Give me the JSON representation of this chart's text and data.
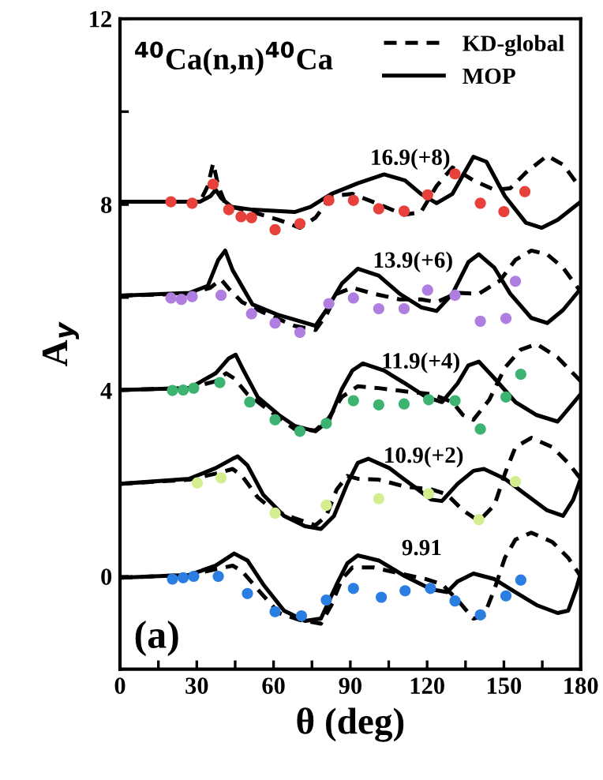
{
  "chart_data": {
    "type": "line",
    "xlabel": "θ (deg)",
    "ylabel": "A$_{y}$",
    "xlim": [
      0,
      180
    ],
    "ylim": [
      -2,
      12
    ],
    "xticks": [
      0,
      {
        "value": 15,
        "label": null
      },
      30,
      {
        "value": 45,
        "label": null
      },
      60,
      {
        "value": 75,
        "label": null
      },
      90,
      {
        "value": 105,
        "label": null
      },
      120,
      {
        "value": 135,
        "label": null
      },
      150,
      {
        "value": 165,
        "label": null
      },
      180
    ],
    "yticks": [
      0,
      {
        "value": 2,
        "label": null
      },
      4,
      {
        "value": 6,
        "label": null
      },
      8,
      {
        "value": 10,
        "label": null
      },
      12
    ],
    "grid": false,
    "legend": "top right",
    "annotations": [
      "$^{40}$Ca(n,n)$^{40}$Ca",
      "(a)",
      "16.9(+8)",
      "13.9(+6)",
      "11.9(+4)",
      "10.9(+2)",
      "9.91"
    ],
    "series": [
      {
        "name": "KD-global",
        "line_style": "dashed",
        "color": "#000000",
        "x": [
          0,
          31.2,
          34.3,
          36.4,
          38.4,
          41.5,
          51.8,
          62.1,
          70.3,
          76.4,
          82.6,
          90.8,
          101.1,
          111,
          117.6,
          123.7,
          129.9,
          138.1,
          146.3,
          152.5,
          158.6,
          166.9,
          173.1,
          180
        ],
        "values": [
          8.06,
          8.06,
          8.4,
          8.89,
          8.4,
          7.98,
          7.84,
          7.67,
          7.5,
          7.72,
          8.18,
          8.23,
          8.01,
          7.78,
          7.84,
          8.4,
          8.8,
          8.52,
          8.32,
          8.35,
          8.69,
          9.05,
          8.86,
          8.35
        ]
      },
      {
        "name": "MOP",
        "line_style": "solid",
        "color": "#000000",
        "x": [
          0,
          31.2,
          35.3,
          37.4,
          39.5,
          43.6,
          51.8,
          68.2,
          74.4,
          82.6,
          92.9,
          103.2,
          111.4,
          117.6,
          123.7,
          129.9,
          138.1,
          143.2,
          150.4,
          158.6,
          164.8,
          171,
          180
        ],
        "values": [
          8.06,
          8.06,
          8.18,
          8.32,
          8.14,
          7.95,
          7.89,
          7.84,
          7.95,
          8.23,
          8.46,
          8.65,
          8.52,
          8.23,
          8.03,
          8.23,
          9.03,
          8.92,
          8.18,
          7.61,
          7.5,
          7.67,
          8.06
        ]
      },
      {
        "type": "scatter",
        "marker": "circle",
        "color": "#e8403a",
        "x": [
          19.9,
          28.2,
          36.4,
          42.5,
          47.3,
          51.4,
          60.6,
          70.3,
          81.6,
          91.2,
          101.1,
          111,
          120.2,
          130.9,
          140.8,
          150,
          158.2
        ],
        "values": [
          8.06,
          8.03,
          8.44,
          7.89,
          7.74,
          7.72,
          7.46,
          7.59,
          8.09,
          8.09,
          7.91,
          7.86,
          8.21,
          8.66,
          8.03,
          7.85,
          8.28
        ]
      },
      {
        "type": "line",
        "line_style": "dashed",
        "color": "#000000",
        "x": [
          0,
          27.1,
          35.3,
          39.5,
          42.5,
          47.7,
          55.9,
          68.2,
          76.4,
          80.6,
          84.7,
          90.8,
          99.1,
          109.3,
          117.6,
          123.7,
          131.9,
          140.2,
          148.4,
          154.5,
          160.7,
          166.9,
          173.1,
          180
        ],
        "values": [
          6.04,
          6.08,
          6.21,
          6.39,
          6.19,
          5.9,
          5.68,
          5.39,
          5.3,
          5.62,
          6.08,
          6.21,
          6.08,
          5.96,
          5.96,
          5.9,
          6.1,
          6.08,
          6.36,
          6.81,
          7.01,
          6.93,
          6.64,
          6.13
        ]
      },
      {
        "type": "line",
        "line_style": "solid",
        "color": "#000000",
        "x": [
          0,
          27.1,
          34.3,
          38.4,
          41.1,
          44,
          51.8,
          62.1,
          70.3,
          76.4,
          80.6,
          86.7,
          92.9,
          101.1,
          109.3,
          117.6,
          123.7,
          129.9,
          136.1,
          140.2,
          146.3,
          152.5,
          160.7,
          166.9,
          173.1,
          180
        ],
        "values": [
          6.04,
          6.1,
          6.25,
          6.81,
          7.01,
          6.59,
          5.85,
          5.62,
          5.49,
          5.39,
          5.73,
          6.3,
          6.62,
          6.47,
          6.08,
          5.79,
          5.71,
          6.08,
          6.76,
          6.93,
          6.64,
          6.08,
          5.56,
          5.45,
          5.73,
          6.19
        ]
      },
      {
        "type": "scatter",
        "marker": "circle",
        "color": "#b07ee0",
        "x": [
          19.9,
          24,
          28.2,
          39.5,
          51.4,
          60.6,
          70.3,
          81.6,
          91.2,
          101.1,
          111,
          120.2,
          130.9,
          140.8,
          150.8,
          154.5
        ],
        "values": [
          5.99,
          5.96,
          6.02,
          6.05,
          5.65,
          5.45,
          5.25,
          5.87,
          5.99,
          5.76,
          5.76,
          6.16,
          6.05,
          5.49,
          5.55,
          6.35
        ]
      },
      {
        "type": "line",
        "line_style": "dashed",
        "color": "#000000",
        "x": [
          0,
          27.1,
          37.4,
          41.5,
          44.6,
          49.8,
          58,
          68.2,
          76.4,
          81.6,
          86.7,
          92.9,
          101.1,
          111.4,
          121.7,
          129.9,
          134,
          138.1,
          144.3,
          150.4,
          156.6,
          162.8,
          171,
          180
        ],
        "values": [
          4.01,
          4.05,
          4.2,
          4.37,
          4.26,
          3.92,
          3.58,
          3.17,
          3.14,
          3.41,
          3.86,
          4.09,
          4.05,
          3.98,
          3.92,
          3.75,
          3.47,
          3.37,
          3.8,
          4.49,
          4.88,
          5.0,
          4.71,
          4.2
        ]
      },
      {
        "type": "line",
        "line_style": "solid",
        "color": "#000000",
        "x": [
          0,
          27.1,
          37.4,
          42.5,
          45.2,
          47.7,
          53.8,
          62.1,
          68.2,
          76.4,
          81.6,
          86.7,
          90.8,
          94.9,
          103.2,
          111.4,
          119.6,
          125.8,
          131.9,
          136.1,
          140.2,
          146.3,
          154.5,
          162.8,
          171,
          180
        ],
        "values": [
          4.01,
          4.05,
          4.37,
          4.69,
          4.77,
          4.49,
          3.86,
          3.47,
          3.24,
          3.12,
          3.35,
          4.03,
          4.43,
          4.58,
          4.43,
          4.15,
          3.86,
          3.75,
          4.15,
          4.54,
          4.62,
          4.26,
          3.75,
          3.47,
          3.33,
          3.92
        ]
      },
      {
        "type": "scatter",
        "marker": "circle",
        "color": "#3cb371",
        "x": [
          20.5,
          24.7,
          28.8,
          39,
          50.7,
          60.6,
          70.3,
          80.6,
          91.2,
          101.1,
          111,
          120.6,
          130.9,
          140.8,
          150.8,
          156.6
        ],
        "values": [
          4.0,
          4.01,
          4.05,
          4.17,
          3.75,
          3.37,
          3.12,
          3.29,
          3.78,
          3.69,
          3.71,
          3.8,
          3.78,
          3.17,
          3.86,
          4.35
        ]
      },
      {
        "type": "line",
        "line_style": "dashed",
        "color": "#000000",
        "x": [
          0,
          27.1,
          37.4,
          44,
          47.7,
          53.8,
          60,
          68.2,
          76.4,
          80.6,
          84.7,
          88.8,
          92.9,
          101.1,
          111.4,
          121.7,
          127.8,
          134,
          140.2,
          146.3,
          150.4,
          154.5,
          160.7,
          168.9,
          175.1,
          180
        ],
        "values": [
          1.99,
          2.08,
          2.21,
          2.31,
          2.16,
          1.7,
          1.42,
          1.25,
          1.1,
          1.3,
          1.87,
          2.16,
          2.1,
          2.08,
          1.93,
          1.87,
          1.76,
          1.42,
          1.19,
          1.53,
          2.21,
          2.78,
          2.98,
          2.78,
          2.44,
          2.1
        ]
      },
      {
        "type": "line",
        "line_style": "solid",
        "color": "#000000",
        "x": [
          0,
          27.1,
          37.4,
          44,
          46,
          49.8,
          55.9,
          64.1,
          72.3,
          78.5,
          83.6,
          88.8,
          92.9,
          97,
          105.2,
          113.4,
          121.7,
          125.8,
          131.9,
          138.1,
          142.2,
          150.4,
          158.6,
          166.9,
          173.1,
          177.1,
          180
        ],
        "values": [
          1.99,
          2.1,
          2.33,
          2.53,
          2.58,
          2.39,
          1.76,
          1.3,
          1.08,
          1.02,
          1.3,
          1.99,
          2.44,
          2.53,
          2.33,
          1.99,
          1.65,
          1.62,
          1.99,
          2.27,
          2.31,
          2.1,
          1.76,
          1.42,
          1.3,
          1.65,
          2.1
        ]
      },
      {
        "type": "scatter",
        "marker": "circle",
        "color": "#d4ee8f",
        "x": [
          30.2,
          39.5,
          60.6,
          80.6,
          101.1,
          120.6,
          140.2,
          154.5
        ],
        "values": [
          2.01,
          2.12,
          1.36,
          1.53,
          1.67,
          1.78,
          1.22,
          2.04
        ]
      },
      {
        "type": "line",
        "line_style": "dashed",
        "color": "#000000",
        "x": [
          0,
          27.1,
          37.4,
          44,
          47.7,
          53.8,
          62.1,
          70.3,
          78.5,
          82.6,
          86.7,
          90.8,
          99.1,
          109.3,
          119.6,
          125.8,
          131.9,
          138.1,
          142.2,
          146.3,
          150.4,
          154.5,
          160.7,
          168.9,
          175.1,
          180
        ],
        "values": [
          -0.03,
          0.03,
          0.15,
          0.23,
          0.11,
          -0.28,
          -0.79,
          -0.94,
          -1.02,
          -0.62,
          -0.06,
          0.19,
          0.19,
          0.06,
          -0.06,
          -0.17,
          -0.51,
          -0.91,
          -0.85,
          -0.28,
          0.4,
          0.79,
          0.94,
          0.74,
          0.4,
          0.0
        ]
      },
      {
        "type": "line",
        "line_style": "solid",
        "color": "#000000",
        "x": [
          0,
          27.1,
          37.4,
          44.6,
          49.8,
          55.9,
          64.1,
          72.3,
          78.5,
          84.7,
          88.8,
          92.9,
          101.1,
          111.4,
          121.7,
          127.8,
          131.9,
          138.1,
          146.3,
          154.5,
          162.8,
          171,
          175.1,
          178.2,
          180
        ],
        "values": [
          -0.03,
          0.03,
          0.23,
          0.49,
          0.34,
          -0.17,
          -0.74,
          -0.96,
          -0.91,
          -0.17,
          0.28,
          0.45,
          0.34,
          0.0,
          -0.28,
          -0.34,
          -0.11,
          0.06,
          -0.06,
          -0.34,
          -0.62,
          -0.79,
          -0.74,
          -0.28,
          0.06
        ]
      },
      {
        "type": "scatter",
        "marker": "circle",
        "color": "#2a7de1",
        "x": [
          20.5,
          24.7,
          28.8,
          38.4,
          49.8,
          60.6,
          70.9,
          80.6,
          91.2,
          102.1,
          111.4,
          121.3,
          130.9,
          140.8,
          150.8,
          156.6
        ],
        "values": [
          -0.06,
          -0.03,
          0.0,
          0.0,
          -0.37,
          -0.76,
          -0.85,
          -0.51,
          -0.26,
          -0.45,
          -0.31,
          -0.26,
          -0.53,
          -0.83,
          -0.42,
          -0.08
        ]
      }
    ]
  }
}
